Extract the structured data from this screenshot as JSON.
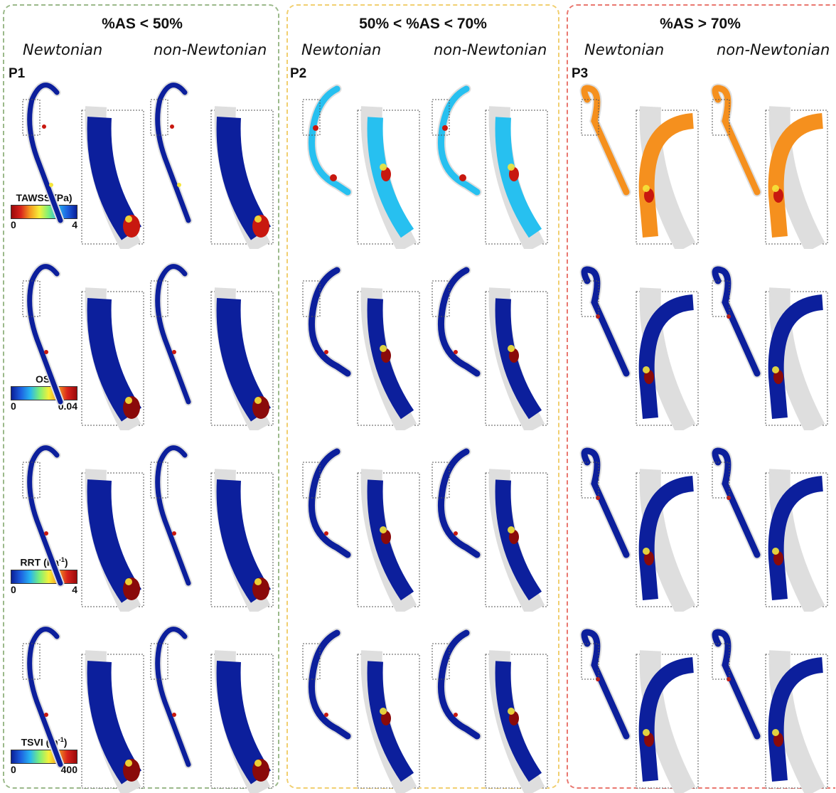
{
  "groups": [
    {
      "title": "%AS < 50%",
      "patient": "P1",
      "newtonian": "Newtonian",
      "non_newtonian": "non-Newtonian"
    },
    {
      "title": "50% < %AS < 70%",
      "patient": "P2",
      "newtonian": "Newtonian",
      "non_newtonian": "non-Newtonian"
    },
    {
      "title": "%AS > 70%",
      "patient": "P3",
      "newtonian": "Newtonian",
      "non_newtonian": "non-Newtonian"
    }
  ],
  "legends": [
    {
      "label": "TAWSS (Pa)",
      "min": "0",
      "max": "4",
      "scale": "jet-reversed"
    },
    {
      "label": "OSI",
      "min": "0",
      "max": "0.04",
      "scale": "jet"
    },
    {
      "label_main": "RRT (Pa",
      "label_sup": "-1",
      "label_end": ")",
      "min": "0",
      "max": "4",
      "scale": "jet"
    },
    {
      "label_main": "TSVI (m",
      "label_sup": "-1",
      "label_end": ")",
      "min": "0",
      "max": "400",
      "scale": "jet"
    }
  ],
  "colors": {
    "low": "#0c1f9c",
    "mid_blue": "#1f6fe6",
    "cyan": "#27c0f0",
    "yellow": "#f5e53a",
    "orange": "#f5901e",
    "red": "#c8180f",
    "dark_red": "#8a0a0a",
    "vessel_gray": "#dedede",
    "border_green": "#9bb98a",
    "border_yellow": "#f1cf70",
    "border_red": "#e9776f"
  }
}
